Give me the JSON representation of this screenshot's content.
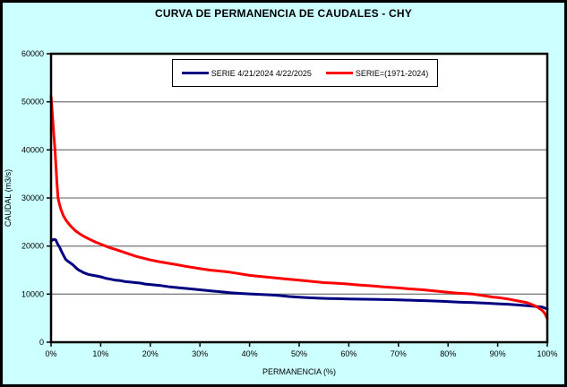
{
  "chart_data": {
    "type": "line",
    "title": "CURVA DE PERMANENCIA DE CAUDALES - CHY",
    "xlabel": "PERMANENCIA (%)",
    "ylabel": "CAUDAL (m3/s)",
    "xlim": [
      0,
      100
    ],
    "ylim": [
      0,
      60000
    ],
    "x_ticks": [
      "0%",
      "10%",
      "20%",
      "30%",
      "40%",
      "50%",
      "60%",
      "70%",
      "80%",
      "90%",
      "100%"
    ],
    "y_ticks": [
      0,
      10000,
      20000,
      30000,
      40000,
      50000,
      60000
    ],
    "y_tick_labels": [
      "0",
      "10000",
      "20000",
      "30000",
      "40000",
      "50000",
      "60000"
    ],
    "grid": "horizontal",
    "legend_position": "top-inside",
    "colors": {
      "background": "#CCFFFF",
      "plot_background": "#FFFFFF",
      "gridline": "#808080",
      "border": "#000000"
    },
    "series": [
      {
        "name": "SERIE 4/21/2024 4/22/2025",
        "color": "#000080",
        "points": [
          [
            0,
            21000
          ],
          [
            0.3,
            21300
          ],
          [
            0.7,
            21400
          ],
          [
            1.0,
            21200
          ],
          [
            1.2,
            20700
          ],
          [
            1.5,
            20100
          ],
          [
            1.8,
            19600
          ],
          [
            2.0,
            19100
          ],
          [
            2.3,
            18500
          ],
          [
            2.6,
            17900
          ],
          [
            2.9,
            17300
          ],
          [
            3.2,
            17000
          ],
          [
            3.6,
            16700
          ],
          [
            4.0,
            16400
          ],
          [
            4.4,
            16100
          ],
          [
            4.8,
            15700
          ],
          [
            5.2,
            15300
          ],
          [
            5.6,
            15000
          ],
          [
            6.0,
            14800
          ],
          [
            6.5,
            14500
          ],
          [
            7.0,
            14300
          ],
          [
            7.5,
            14100
          ],
          [
            8.0,
            14000
          ],
          [
            9.0,
            13800
          ],
          [
            10,
            13600
          ],
          [
            11,
            13300
          ],
          [
            12,
            13100
          ],
          [
            13,
            12900
          ],
          [
            14,
            12800
          ],
          [
            15,
            12600
          ],
          [
            16,
            12500
          ],
          [
            17,
            12400
          ],
          [
            18,
            12300
          ],
          [
            19,
            12100
          ],
          [
            20,
            12000
          ],
          [
            22,
            11800
          ],
          [
            24,
            11500
          ],
          [
            26,
            11300
          ],
          [
            28,
            11100
          ],
          [
            30,
            10900
          ],
          [
            32,
            10700
          ],
          [
            34,
            10500
          ],
          [
            36,
            10300
          ],
          [
            38,
            10150
          ],
          [
            40,
            10050
          ],
          [
            42,
            9950
          ],
          [
            44,
            9850
          ],
          [
            46,
            9700
          ],
          [
            48,
            9500
          ],
          [
            50,
            9350
          ],
          [
            52,
            9250
          ],
          [
            54,
            9150
          ],
          [
            56,
            9100
          ],
          [
            58,
            9050
          ],
          [
            60,
            9000
          ],
          [
            63,
            8950
          ],
          [
            66,
            8900
          ],
          [
            70,
            8800
          ],
          [
            73,
            8700
          ],
          [
            76,
            8600
          ],
          [
            79,
            8500
          ],
          [
            82,
            8350
          ],
          [
            85,
            8250
          ],
          [
            88,
            8100
          ],
          [
            90,
            8000
          ],
          [
            92,
            7900
          ],
          [
            94,
            7750
          ],
          [
            96,
            7600
          ],
          [
            98,
            7400
          ],
          [
            99,
            7300
          ],
          [
            100,
            6900
          ]
        ]
      },
      {
        "name": "SERIE=(1971-2024)",
        "color": "#FF0000",
        "points": [
          [
            0,
            51200
          ],
          [
            0.2,
            48500
          ],
          [
            0.4,
            45500
          ],
          [
            0.6,
            42500
          ],
          [
            0.8,
            40000
          ],
          [
            1.0,
            36500
          ],
          [
            1.2,
            33000
          ],
          [
            1.4,
            30000
          ],
          [
            1.7,
            28700
          ],
          [
            2,
            27600
          ],
          [
            2.5,
            26300
          ],
          [
            3,
            25400
          ],
          [
            3.5,
            24700
          ],
          [
            4,
            24100
          ],
          [
            5,
            23100
          ],
          [
            6,
            22400
          ],
          [
            7,
            21800
          ],
          [
            8,
            21300
          ],
          [
            9,
            20800
          ],
          [
            10,
            20400
          ],
          [
            11,
            20000
          ],
          [
            12,
            19600
          ],
          [
            13,
            19300
          ],
          [
            15,
            18600
          ],
          [
            17,
            17900
          ],
          [
            20,
            17100
          ],
          [
            22,
            16700
          ],
          [
            25,
            16200
          ],
          [
            27,
            15800
          ],
          [
            30,
            15300
          ],
          [
            32,
            15000
          ],
          [
            35,
            14700
          ],
          [
            37,
            14400
          ],
          [
            40,
            13900
          ],
          [
            42,
            13700
          ],
          [
            45,
            13400
          ],
          [
            47,
            13200
          ],
          [
            50,
            12900
          ],
          [
            53,
            12600
          ],
          [
            55,
            12400
          ],
          [
            57,
            12300
          ],
          [
            60,
            12100
          ],
          [
            62,
            11900
          ],
          [
            65,
            11700
          ],
          [
            67,
            11500
          ],
          [
            70,
            11300
          ],
          [
            72,
            11100
          ],
          [
            75,
            10900
          ],
          [
            77,
            10700
          ],
          [
            80,
            10400
          ],
          [
            82,
            10200
          ],
          [
            85,
            10000
          ],
          [
            87,
            9700
          ],
          [
            89,
            9400
          ],
          [
            90,
            9300
          ],
          [
            92,
            9000
          ],
          [
            93,
            8800
          ],
          [
            95,
            8400
          ],
          [
            96,
            8200
          ],
          [
            97,
            7800
          ],
          [
            98,
            7300
          ],
          [
            99,
            6600
          ],
          [
            99.5,
            6000
          ],
          [
            100,
            4900
          ]
        ]
      }
    ]
  }
}
